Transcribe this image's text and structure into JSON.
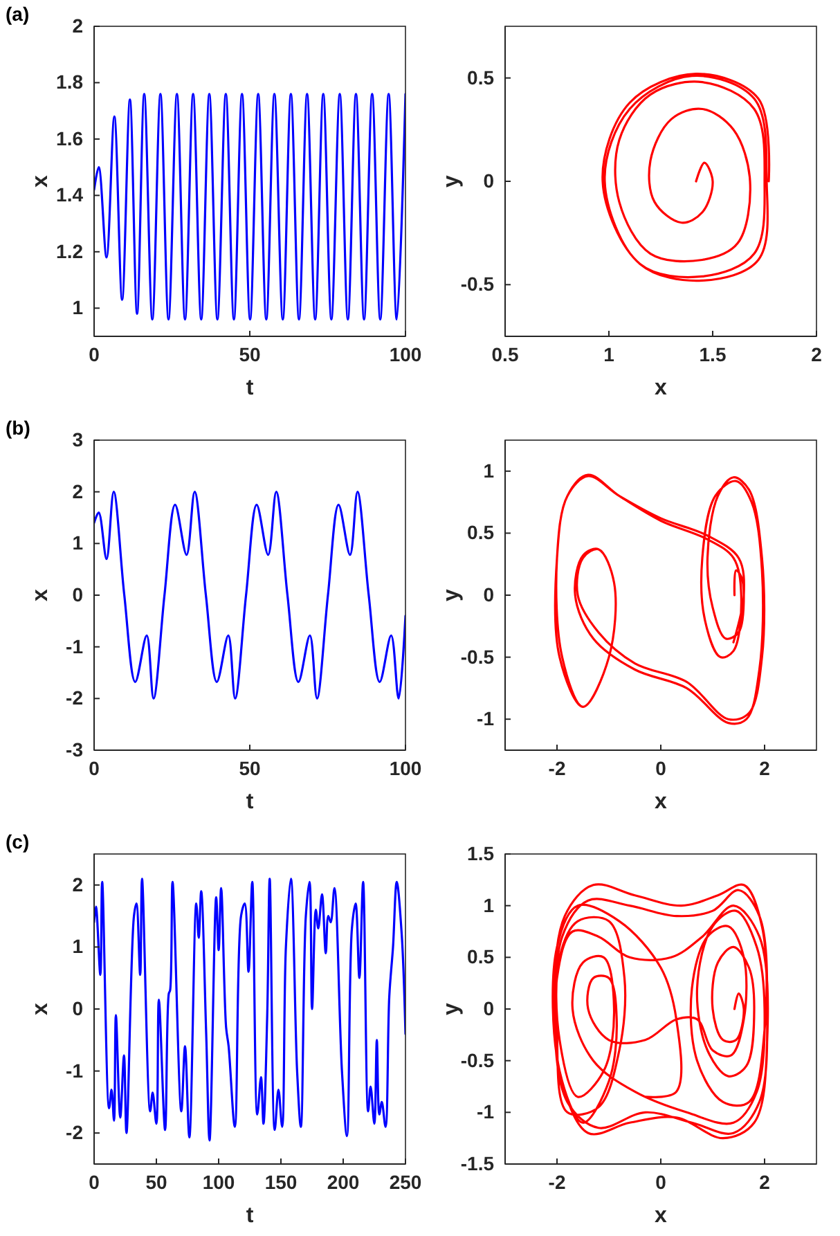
{
  "chart_data": [
    {
      "type": "line",
      "title": "(a)",
      "xlabel": "t",
      "ylabel": "x",
      "xlim": [
        0,
        100
      ],
      "xticks": [
        0,
        50,
        100
      ],
      "ylim": [
        0.9,
        2
      ],
      "yticks": [
        1,
        1.2,
        1.4,
        1.6,
        1.8,
        2
      ],
      "x": [
        0,
        1.5,
        4,
        6.5,
        9,
        11.5,
        13.8,
        16.1,
        18.7,
        21.3,
        23.9,
        26.6,
        29.2,
        31.8,
        34.4,
        37.0,
        39.6,
        42.3,
        44.9,
        47.5,
        50.1,
        52.7,
        55.3,
        57.9,
        60.6,
        63.2,
        65.8,
        68.4,
        71.0,
        73.6,
        76.2,
        78.9,
        81.5,
        84.1,
        86.7,
        89.3,
        91.9,
        94.6,
        97.2,
        100
      ],
      "series": [
        {
          "color": "#0000ff",
          "values": [
            1.42,
            1.5,
            1.18,
            1.68,
            1.03,
            1.74,
            0.98,
            1.76,
            0.96,
            1.76,
            0.96,
            1.76,
            0.96,
            1.76,
            0.96,
            1.76,
            0.96,
            1.76,
            0.96,
            1.76,
            0.96,
            1.76,
            0.96,
            1.76,
            0.96,
            1.76,
            0.96,
            1.76,
            0.96,
            1.76,
            0.96,
            1.76,
            0.96,
            1.76,
            0.96,
            1.76,
            0.96,
            1.76,
            0.96,
            1.76
          ]
        }
      ]
    },
    {
      "type": "line",
      "xlabel": "x",
      "ylabel": "y",
      "xlim": [
        0.5,
        2
      ],
      "xticks": [
        0.5,
        1,
        1.5,
        2
      ],
      "ylim": [
        -0.75,
        0.75
      ],
      "yticks": [
        -0.5,
        0,
        0.5
      ],
      "x": [
        1.42,
        1.46,
        1.5,
        1.45,
        1.35,
        1.22,
        1.2,
        1.3,
        1.45,
        1.6,
        1.68,
        1.62,
        1.45,
        1.2,
        1.05,
        1.05,
        1.2,
        1.45,
        1.7,
        1.75,
        1.7,
        1.45,
        1.15,
        0.98,
        1.1,
        1.4,
        1.7,
        1.76,
        1.72,
        1.45,
        1.15,
        0.97,
        1.1,
        1.42,
        1.72,
        1.77
      ],
      "series": [
        {
          "color": "#ff0000",
          "values": [
            0,
            0.09,
            0,
            -0.15,
            -0.2,
            -0.1,
            0.1,
            0.3,
            0.35,
            0.25,
            0,
            -0.3,
            -0.38,
            -0.35,
            -0.1,
            0.2,
            0.42,
            0.48,
            0.35,
            0,
            -0.35,
            -0.46,
            -0.4,
            0,
            0.35,
            0.51,
            0.4,
            0,
            -0.38,
            -0.48,
            -0.4,
            0,
            0.38,
            0.52,
            0.4,
            0
          ]
        }
      ]
    },
    {
      "type": "line",
      "title": "(b)",
      "xlabel": "t",
      "ylabel": "x",
      "xlim": [
        0,
        100
      ],
      "xticks": [
        0,
        50,
        100
      ],
      "ylim": [
        -3,
        3
      ],
      "yticks": [
        -3,
        -2,
        -1,
        0,
        1,
        2,
        3
      ],
      "x": [
        0,
        1.5,
        4,
        6.3,
        9.7,
        13.2,
        16.9,
        19.1,
        22.6,
        26,
        29.7,
        32.3,
        35.9,
        39.4,
        43.1,
        45.3,
        48.8,
        52.2,
        55.9,
        58.5,
        62.1,
        65.6,
        69.3,
        71.6,
        75.1,
        78.5,
        82.2,
        84.6,
        88.2,
        91.7,
        95.4,
        97.8,
        100
      ],
      "series": [
        {
          "color": "#0000ff",
          "values": [
            1.4,
            1.6,
            0.7,
            2.0,
            0,
            -1.68,
            -0.78,
            -2.0,
            0,
            1.75,
            0.78,
            2.0,
            0,
            -1.68,
            -0.78,
            -2.0,
            0,
            1.75,
            0.78,
            2.0,
            0,
            -1.68,
            -0.78,
            -2.0,
            0,
            1.75,
            0.78,
            2.0,
            0,
            -1.68,
            -0.78,
            -2.0,
            -0.4
          ]
        }
      ]
    },
    {
      "type": "line",
      "xlabel": "x",
      "ylabel": "y",
      "xlim": [
        -3,
        3
      ],
      "xticks": [
        -2,
        0,
        2
      ],
      "ylim": [
        -1.25,
        1.25
      ],
      "yticks": [
        -1,
        -0.5,
        0,
        0.5,
        1
      ],
      "x": [
        1.42,
        1.45,
        1.55,
        1.6,
        1.5,
        1.25,
        1.0,
        0.9,
        1.1,
        1.4,
        1.7,
        1.95,
        1.95,
        1.7,
        1.3,
        0.5,
        -0.5,
        -1.2,
        -1.6,
        -1.5,
        -1.2,
        -0.9,
        -1.0,
        -1.5,
        -1.9,
        -2.0,
        -1.8,
        -1.4,
        -0.8,
        0,
        0.9,
        1.4,
        1.55,
        1.4,
        1.15,
        0.85,
        0.8,
        1.05,
        1.45,
        1.75,
        1.95,
        1.9,
        1.65,
        1.3,
        0.5,
        -0.5,
        -1.3,
        -1.65,
        -1.5,
        -1.2,
        -0.9,
        -1.0,
        -1.5,
        -1.95,
        -2.0,
        -1.8,
        -1.4,
        -0.8,
        0,
        0.9,
        1.5,
        1.6,
        1.4
      ],
      "series": [
        {
          "color": "#ff0000",
          "values": [
            0,
            0.2,
            0.15,
            0,
            -0.3,
            -0.35,
            -0.1,
            0.3,
            0.8,
            0.95,
            0.85,
            0.3,
            -0.5,
            -0.95,
            -1.0,
            -0.7,
            -0.55,
            -0.3,
            0,
            0.3,
            0.37,
            0.1,
            -0.5,
            -0.9,
            -0.5,
            0.3,
            0.8,
            0.97,
            0.8,
            0.6,
            0.45,
            0.3,
            0,
            -0.45,
            -0.5,
            -0.2,
            0.3,
            0.8,
            0.92,
            0.75,
            0.2,
            -0.6,
            -1.0,
            -1.03,
            -0.75,
            -0.6,
            -0.35,
            0,
            0.32,
            0.37,
            0.1,
            -0.5,
            -0.9,
            -0.5,
            0.3,
            0.8,
            0.96,
            0.8,
            0.62,
            0.48,
            0.3,
            0,
            -0.38
          ]
        }
      ]
    },
    {
      "type": "line",
      "title": "(c)",
      "xlabel": "t",
      "ylabel": "x",
      "xlim": [
        0,
        250
      ],
      "xticks": [
        0,
        50,
        100,
        150,
        200,
        250
      ],
      "ylim": [
        -2.5,
        2.5
      ],
      "yticks": [
        -2,
        -1,
        0,
        1,
        2
      ],
      "x": [
        0,
        1.5,
        5,
        6.5,
        12,
        14,
        16,
        17.5,
        21,
        24,
        26,
        32,
        34,
        37,
        38.5,
        45,
        47,
        50,
        52,
        57,
        60,
        61,
        63,
        70,
        73,
        76.5,
        82,
        84,
        86,
        90,
        92.7,
        98,
        100,
        102,
        106,
        108,
        113,
        118,
        121,
        124,
        127,
        131,
        134,
        136,
        139,
        141,
        145,
        148,
        151,
        154,
        158,
        163,
        166,
        170,
        173,
        175,
        178,
        180,
        183,
        186,
        188,
        190,
        193,
        199,
        203,
        207,
        210,
        213,
        216,
        220,
        222,
        225,
        227,
        229,
        231,
        234,
        237,
        240,
        243,
        247,
        250
      ],
      "series": [
        {
          "color": "#0000ff",
          "values": [
            1.4,
            1.65,
            0.55,
            2.05,
            -1.6,
            -1.3,
            -1.8,
            -0.1,
            -1.75,
            -0.75,
            -2.0,
            1.5,
            1.7,
            0.55,
            2.1,
            -1.65,
            -1.35,
            -1.85,
            0.15,
            -1.95,
            0.25,
            0.3,
            2.05,
            -1.65,
            -0.6,
            -2.07,
            1.7,
            1.15,
            1.9,
            -0.4,
            -2.12,
            1.8,
            0.95,
            1.95,
            -0.3,
            -0.6,
            -1.9,
            1.5,
            1.7,
            0.6,
            2.05,
            -1.7,
            -1.1,
            -1.85,
            -0.1,
            2.1,
            -1.95,
            -1.3,
            -1.9,
            1.0,
            2.1,
            -1.0,
            -1.9,
            1.5,
            2.05,
            0.0,
            1.6,
            1.3,
            1.85,
            0.9,
            1.5,
            1.4,
            1.95,
            -1.0,
            -2.05,
            1.3,
            1.7,
            0.5,
            2.05,
            -1.65,
            -1.25,
            -1.85,
            -0.5,
            -1.7,
            -1.5,
            -1.9,
            0.2,
            1.0,
            2.05,
            1.2,
            -0.4
          ]
        }
      ]
    },
    {
      "type": "line",
      "xlabel": "x",
      "ylabel": "y",
      "xlim": [
        -3,
        3
      ],
      "xticks": [
        -2,
        0,
        2
      ],
      "ylim": [
        -1.5,
        1.5
      ],
      "yticks": [
        -1.5,
        -1,
        -0.5,
        0,
        0.5,
        1,
        1.5
      ],
      "x": [
        1.42,
        1.5,
        1.6,
        1.45,
        1.2,
        1.0,
        1.1,
        1.4,
        1.7,
        1.8,
        1.65,
        1.3,
        0.9,
        0.7,
        1.0,
        1.45,
        1.85,
        2.0,
        1.85,
        1.4,
        0.5,
        -0.5,
        -1.3,
        -1.7,
        -1.5,
        -1.1,
        -0.9,
        -1.1,
        -1.6,
        -1.95,
        -1.95,
        -1.6,
        -1.0,
        -0.7,
        -0.8,
        -1.2,
        -1.8,
        -2.0,
        -1.9,
        -1.4,
        -0.6,
        0.3,
        1.0,
        1.5,
        1.9,
        2.05,
        1.9,
        1.4,
        0.6,
        -0.3,
        -1.2,
        -1.8,
        -2.05,
        -1.85,
        -1.3,
        -0.5,
        0.4,
        1.1,
        1.6,
        1.95,
        2.0,
        1.7,
        1.2,
        0.7,
        0.6,
        0.9,
        1.3,
        1.6,
        1.6,
        1.35,
        1.0,
        0.7,
        0.3,
        -0.3,
        -1.0,
        -1.4,
        -1.3,
        -1.0,
        -0.85,
        -1.0,
        -1.5,
        -1.95,
        -2.0,
        -1.7,
        -1.2,
        -0.6,
        0.2,
        0.8,
        1.4,
        1.9,
        2.05,
        1.8,
        1.2,
        0.3,
        -0.6,
        -1.4,
        -1.95,
        -2.0,
        -1.6,
        -0.8,
        0.0,
        0.3,
        0.3,
        -0.3
      ],
      "series": [
        {
          "color": "#ff0000",
          "values": [
            0,
            0.15,
            0,
            -0.3,
            -0.3,
            0,
            0.45,
            0.6,
            0.4,
            0,
            -0.55,
            -0.65,
            -0.4,
            0.2,
            0.8,
            0.95,
            0.6,
            0,
            -0.8,
            -1.1,
            -1.0,
            -0.8,
            -0.5,
            0,
            0.45,
            0.5,
            0,
            -0.6,
            -0.85,
            -0.3,
            0.5,
            0.85,
            0.85,
            0.3,
            -0.4,
            -0.95,
            -1.0,
            -0.2,
            0.7,
            1.05,
            1.0,
            0.9,
            0.95,
            1.15,
            0.9,
            0,
            -0.9,
            -1.2,
            -1.1,
            -1.0,
            -1.15,
            -0.9,
            0,
            0.9,
            1.2,
            1.1,
            1.0,
            1.1,
            1.2,
            0.8,
            -0.2,
            -0.9,
            -0.9,
            -0.5,
            0.2,
            0.7,
            0.8,
            0.5,
            -0.1,
            -0.45,
            -0.4,
            -0.1,
            -0.1,
            -0.3,
            -0.3,
            0,
            0.3,
            0.3,
            -0.1,
            -0.7,
            -1.1,
            -0.6,
            0.3,
            0.75,
            0.7,
            0.5,
            0.5,
            0.7,
            1.0,
            0.7,
            -0.3,
            -1.1,
            -1.25,
            -1.05,
            -1.1,
            -1.2,
            -0.6,
            0.6,
            1.0,
            0.85,
            0.4,
            -0.1,
            -0.8,
            -0.85
          ]
        }
      ]
    }
  ]
}
